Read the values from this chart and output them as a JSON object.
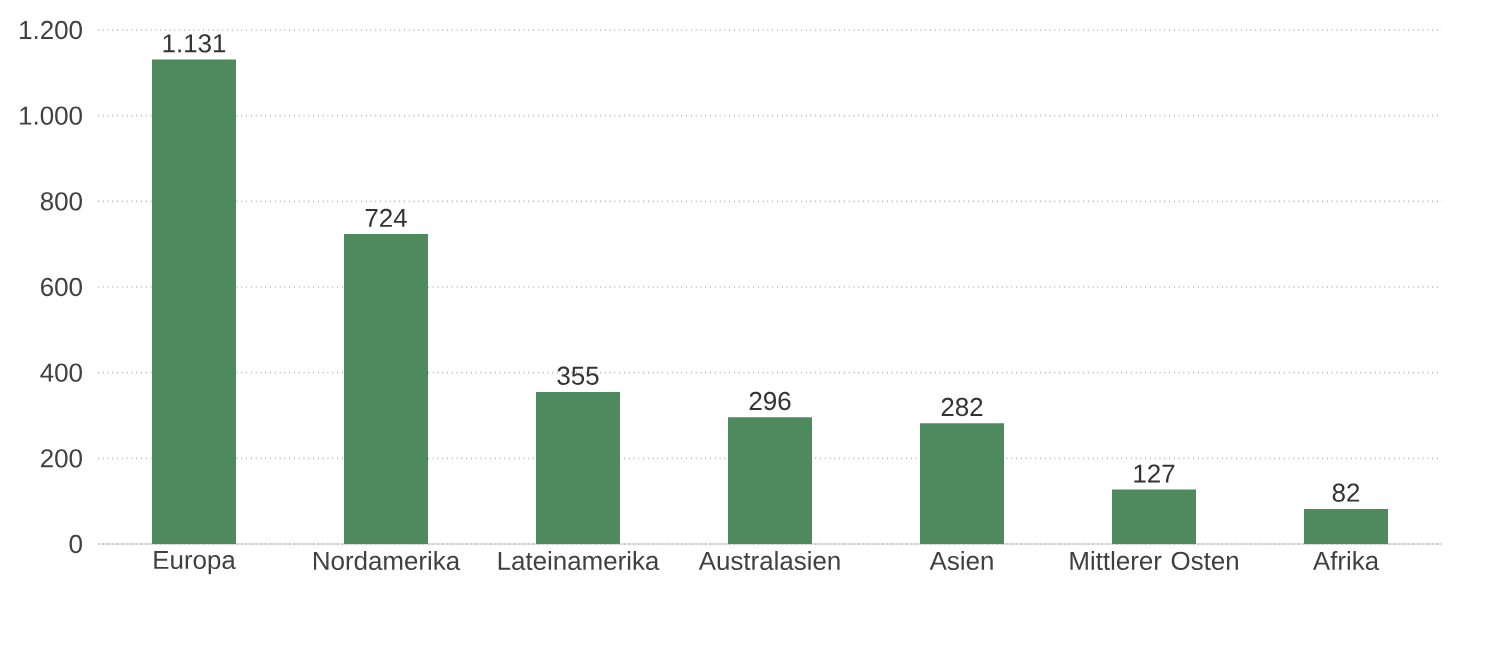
{
  "chart_data": {
    "type": "bar",
    "categories": [
      "Europa",
      "Nordamerika",
      "Lateinamerika",
      "Australasien",
      "Asien",
      "Mittlerer Osten",
      "Afrika"
    ],
    "values": [
      1131,
      724,
      355,
      296,
      282,
      127,
      82
    ],
    "value_labels": [
      "1.131",
      "724",
      "355",
      "296",
      "282",
      "127",
      "82"
    ],
    "color": "#4f8a5f",
    "ylim": [
      0,
      1200
    ],
    "yticks": [
      0,
      200,
      400,
      600,
      800,
      {
        "value": 1000,
        "label": "1.000"
      },
      {
        "value": 1200,
        "label": "1.200"
      }
    ],
    "grid": "y"
  }
}
